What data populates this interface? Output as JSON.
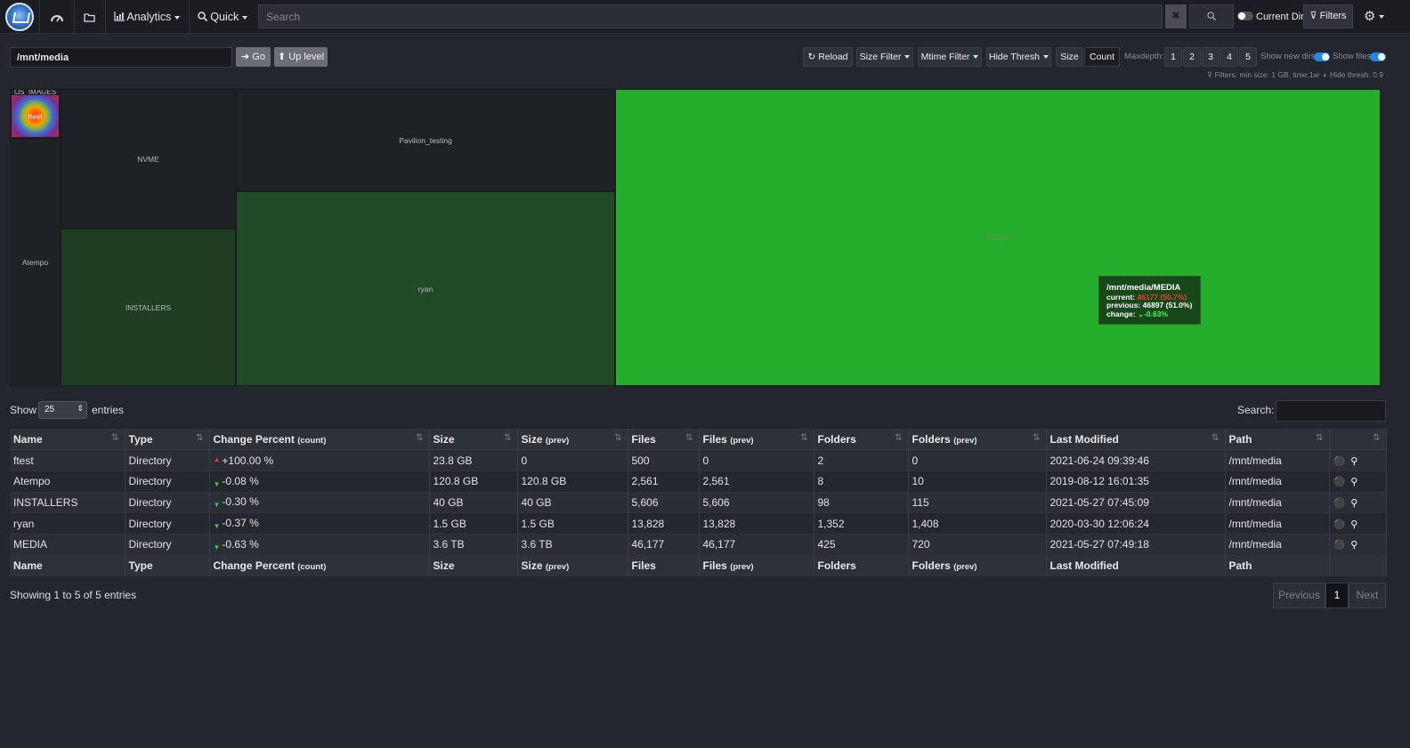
{
  "navbar": {
    "analytics_label": "Analytics",
    "quick_label": "Quick",
    "search_placeholder": "Search",
    "clear_label": "✖",
    "current_dir_label": "Current Dir",
    "filters_label": "Filters"
  },
  "pathbar": {
    "path_value": "/mnt/media",
    "go_label": "Go",
    "up_label": "Up level"
  },
  "toolbar": {
    "reload_label": "Reload",
    "size_filter_label": "Size Filter",
    "mtime_filter_label": "Mtime Filter",
    "hide_thresh_label": "Hide Thresh",
    "size_label": "Size",
    "count_label": "Count",
    "maxdepth_label": "Maxdepth:",
    "depths": [
      "1",
      "2",
      "3",
      "4",
      "5"
    ],
    "show_new_dirs_label": "Show new dirs",
    "show_files_label": "Show files",
    "filters_info": "Filters: min size: 1 GB, time:1w",
    "hide_thresh_info": "Hide thresh: 0.9"
  },
  "treemap": {
    "cells": [
      {
        "label": "OS_IMAGES"
      },
      {
        "label": "ftest"
      },
      {
        "label": "Atempo"
      },
      {
        "label": "NVME"
      },
      {
        "label": "INSTALLERS"
      },
      {
        "label": "Pavilion_testing"
      },
      {
        "label": "ryan"
      },
      {
        "label": "MEDIA"
      }
    ],
    "colors": {
      "media": "#24ae2b",
      "ryan": "#1f4a25",
      "installers": "#1f3e23",
      "dark": "#1e2126"
    },
    "tooltip": {
      "title": "/mnt/media/MEDIA",
      "current_label": "current:",
      "current_value": "46177 (50.7%)",
      "previous_label": "previous:",
      "previous_value": "46897 (51.0%)",
      "change_label": "change:",
      "change_value": "-0.63%"
    }
  },
  "table_controls": {
    "show_label": "Show",
    "entries_value": "25",
    "entries_label": "entries",
    "search_label": "Search:"
  },
  "table": {
    "headers": [
      "Name",
      "Type",
      "Change Percent",
      "Size",
      "Size",
      "Files",
      "Files",
      "Folders",
      "Folders",
      "Last Modified",
      "Path"
    ],
    "header_subs": [
      "",
      "",
      "(count)",
      "",
      "(prev)",
      "",
      "(prev)",
      "",
      "(prev)",
      "",
      ""
    ],
    "rows": [
      {
        "name": "ftest",
        "type": "Directory",
        "change": "+100.00 %",
        "dir": "up",
        "size": "23.8 GB",
        "size_prev": "0",
        "files": "500",
        "files_prev": "0",
        "folders": "2",
        "folders_prev": "0",
        "modified": "2021-06-24 09:39:46",
        "path": "/mnt/media"
      },
      {
        "name": "Atempo",
        "type": "Directory",
        "change": "-0.08 %",
        "dir": "down",
        "size": "120.8 GB",
        "size_prev": "120.8 GB",
        "files": "2,561",
        "files_prev": "2,561",
        "folders": "8",
        "folders_prev": "10",
        "modified": "2019-08-12 16:01:35",
        "path": "/mnt/media"
      },
      {
        "name": "INSTALLERS",
        "type": "Directory",
        "change": "-0.30 %",
        "dir": "down",
        "size": "40 GB",
        "size_prev": "40 GB",
        "files": "5,606",
        "files_prev": "5,606",
        "folders": "98",
        "folders_prev": "115",
        "modified": "2021-05-27 07:45:09",
        "path": "/mnt/media"
      },
      {
        "name": "ryan",
        "type": "Directory",
        "change": "-0.37 %",
        "dir": "down",
        "size": "1.5 GB",
        "size_prev": "1.5 GB",
        "files": "13,828",
        "files_prev": "13,828",
        "folders": "1,352",
        "folders_prev": "1,408",
        "modified": "2020-03-30 12:06:24",
        "path": "/mnt/media"
      },
      {
        "name": "MEDIA",
        "type": "Directory",
        "change": "-0.63 %",
        "dir": "down",
        "size": "3.6 TB",
        "size_prev": "3.6 TB",
        "files": "46,177",
        "files_prev": "46,177",
        "folders": "425",
        "folders_prev": "720",
        "modified": "2021-05-27 07:49:18",
        "path": "/mnt/media"
      }
    ]
  },
  "footer": {
    "showing_text": "Showing 1 to 5 of 5 entries",
    "prev_label": "Previous",
    "page_label": "1",
    "next_label": "Next"
  }
}
